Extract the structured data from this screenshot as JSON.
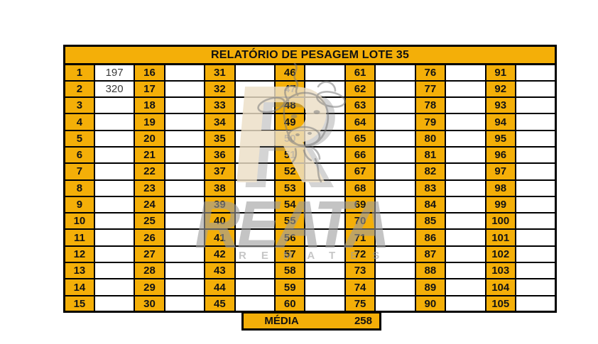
{
  "title": "RELATÓRIO DE PESAGEM LOTE 35",
  "grid": {
    "rows": 15,
    "columns": [
      {
        "numbers": [
          1,
          2,
          3,
          4,
          5,
          6,
          7,
          8,
          9,
          10,
          11,
          12,
          13,
          14,
          15
        ],
        "values": [
          "197",
          "320",
          "",
          "",
          "",
          "",
          "",
          "",
          "",
          "",
          "",
          "",
          "",
          "",
          ""
        ]
      },
      {
        "numbers": [
          16,
          17,
          18,
          19,
          20,
          21,
          22,
          23,
          24,
          25,
          26,
          27,
          28,
          29,
          30
        ],
        "values": [
          "",
          "",
          "",
          "",
          "",
          "",
          "",
          "",
          "",
          "",
          "",
          "",
          "",
          "",
          ""
        ]
      },
      {
        "numbers": [
          31,
          32,
          33,
          34,
          35,
          36,
          37,
          38,
          39,
          40,
          41,
          42,
          43,
          44,
          45
        ],
        "values": [
          "",
          "",
          "",
          "",
          "",
          "",
          "",
          "",
          "",
          "",
          "",
          "",
          "",
          "",
          ""
        ]
      },
      {
        "numbers": [
          46,
          47,
          48,
          49,
          50,
          51,
          52,
          53,
          54,
          55,
          56,
          57,
          58,
          59,
          60
        ],
        "values": [
          "",
          "",
          "",
          "",
          "",
          "",
          "",
          "",
          "",
          "",
          "",
          "",
          "",
          "",
          ""
        ]
      },
      {
        "numbers": [
          61,
          62,
          63,
          64,
          65,
          66,
          67,
          68,
          69,
          70,
          71,
          72,
          73,
          74,
          75
        ],
        "values": [
          "",
          "",
          "",
          "",
          "",
          "",
          "",
          "",
          "",
          "",
          "",
          "",
          "",
          "",
          ""
        ]
      },
      {
        "numbers": [
          76,
          77,
          78,
          79,
          80,
          81,
          82,
          83,
          84,
          85,
          86,
          87,
          88,
          89,
          90
        ],
        "values": [
          "",
          "",
          "",
          "",
          "",
          "",
          "",
          "",
          "",
          "",
          "",
          "",
          "",
          "",
          ""
        ]
      },
      {
        "numbers": [
          91,
          92,
          93,
          94,
          95,
          96,
          97,
          98,
          99,
          100,
          101,
          102,
          103,
          104,
          105
        ],
        "values": [
          "",
          "",
          "",
          "",
          "",
          "",
          "",
          "",
          "",
          "",
          "",
          "",
          "",
          "",
          ""
        ]
      }
    ]
  },
  "footer": {
    "label": "MÉDIA",
    "value": "258"
  },
  "watermark": {
    "logo_letter": "R",
    "brand": "REATA",
    "subtitle": "REMATES",
    "logo_icon": "bull-head-icon"
  },
  "colors": {
    "accent_orange": "#F4AF08",
    "grid_border": "#000000",
    "value_text": "#3A3A3A",
    "watermark_cream": "#ECDFC6",
    "watermark_gray": "#9E9E9E"
  }
}
